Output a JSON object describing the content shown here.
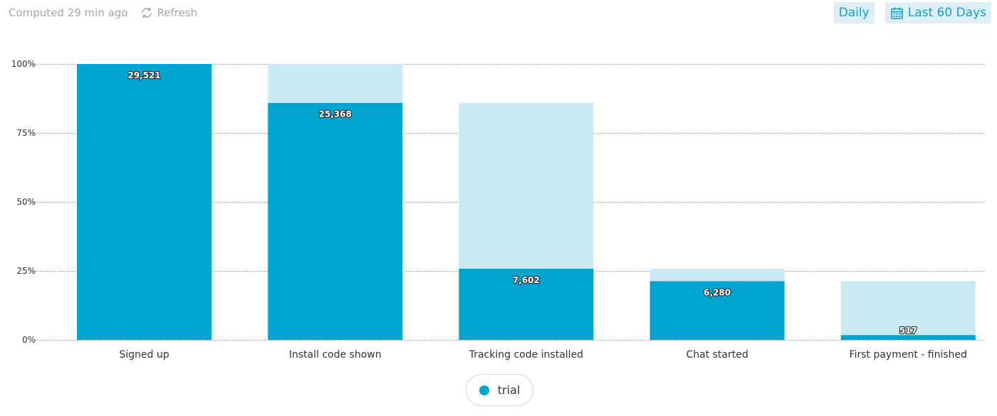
{
  "header": {
    "computed_text": "Computed 29 min ago",
    "refresh_label": "Refresh",
    "interval_label": "Daily",
    "range_label": "Last 60 Days"
  },
  "colors": {
    "accent": "#0fa1cb",
    "bar_primary": "#00a5cf",
    "bar_dropoff": "#cbebf4",
    "pill_bg": "#dfeef4"
  },
  "legend": {
    "series_name": "trial"
  },
  "chart_data": {
    "type": "bar",
    "categories": [
      "Signed up",
      "Install code shown",
      "Tracking code installed",
      "Chat started",
      "First payment - finished"
    ],
    "series": [
      {
        "name": "trial",
        "values": [
          29521,
          25368,
          7602,
          6280,
          517
        ]
      }
    ],
    "percent_of_first": [
      100,
      85.9,
      25.8,
      21.3,
      1.75
    ],
    "previous_step_percent": [
      100,
      100,
      85.9,
      25.8,
      21.3
    ],
    "y_ticks": [
      "0%",
      "25%",
      "50%",
      "75%",
      "100%"
    ],
    "ylim": [
      0,
      100
    ],
    "grid": true,
    "legend_position": "bottom-center"
  }
}
